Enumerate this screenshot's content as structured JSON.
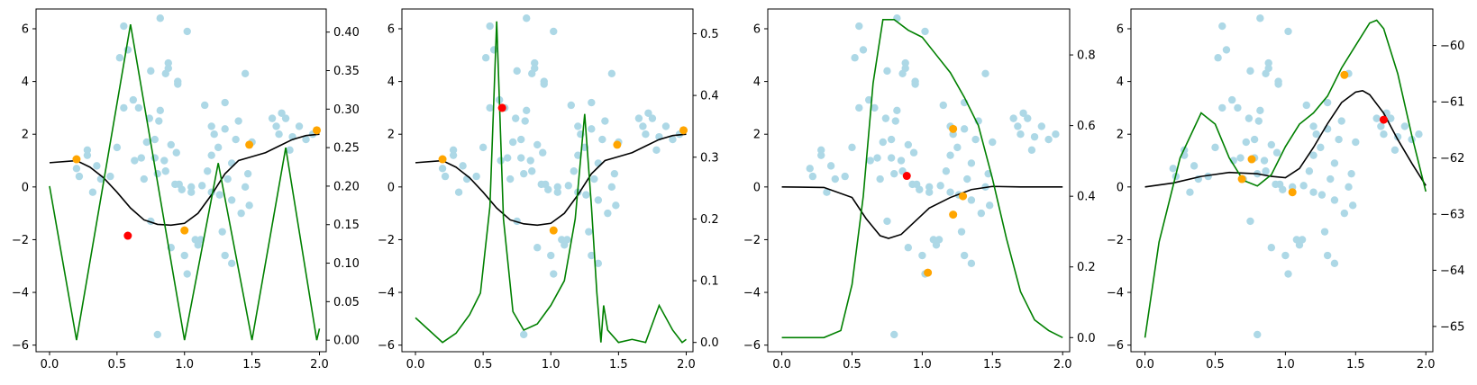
{
  "colors": {
    "scatter": "#add8e6",
    "selected": "#ffa500",
    "best": "#ff0000",
    "mean": "#000000",
    "acquisition": "#008000"
  },
  "chart_data": [
    {
      "type": "scatter",
      "title": "",
      "xlim": [
        -0.1,
        2.05
      ],
      "ylim": [
        -6.25,
        6.75
      ],
      "y2lim": [
        -0.015,
        0.43
      ],
      "x_ticks": [
        {
          "v": 0.0,
          "label": "0.0"
        },
        {
          "v": 0.5,
          "label": "0.5"
        },
        {
          "v": 1.0,
          "label": "1.0"
        },
        {
          "v": 1.5,
          "label": "1.5"
        },
        {
          "v": 2.0,
          "label": "2.0"
        }
      ],
      "y_ticks": [
        {
          "v": -6,
          "label": "−6"
        },
        {
          "v": -4,
          "label": "−4"
        },
        {
          "v": -2,
          "label": "−2"
        },
        {
          "v": 0,
          "label": "0"
        },
        {
          "v": 2,
          "label": "2"
        },
        {
          "v": 4,
          "label": "4"
        },
        {
          "v": 6,
          "label": "6"
        }
      ],
      "y2_ticks": [
        {
          "v": 0.0,
          "label": "0.00"
        },
        {
          "v": 0.05,
          "label": "0.05"
        },
        {
          "v": 0.1,
          "label": "0.10"
        },
        {
          "v": 0.15,
          "label": "0.15"
        },
        {
          "v": 0.2,
          "label": "0.20"
        },
        {
          "v": 0.25,
          "label": "0.25"
        },
        {
          "v": 0.3,
          "label": "0.30"
        },
        {
          "v": 0.35,
          "label": "0.35"
        },
        {
          "v": 0.4,
          "label": "0.40"
        }
      ],
      "selected_points": [
        [
          0.2,
          1.05
        ],
        [
          1.0,
          -1.65
        ],
        [
          1.48,
          1.6
        ],
        [
          1.98,
          2.15
        ]
      ],
      "best_point": [
        0.58,
        -1.85
      ],
      "mean_curve": [
        [
          0,
          0.92
        ],
        [
          0.2,
          1.0
        ],
        [
          0.3,
          0.75
        ],
        [
          0.4,
          0.35
        ],
        [
          0.5,
          -0.2
        ],
        [
          0.6,
          -0.8
        ],
        [
          0.7,
          -1.25
        ],
        [
          0.8,
          -1.42
        ],
        [
          0.9,
          -1.45
        ],
        [
          1.0,
          -1.38
        ],
        [
          1.1,
          -1.0
        ],
        [
          1.2,
          -0.3
        ],
        [
          1.3,
          0.5
        ],
        [
          1.4,
          1.0
        ],
        [
          1.5,
          1.15
        ],
        [
          1.6,
          1.3
        ],
        [
          1.7,
          1.55
        ],
        [
          1.8,
          1.8
        ],
        [
          1.9,
          1.95
        ],
        [
          2.0,
          2.0
        ]
      ],
      "acquisition_curve": [
        [
          0,
          0.2
        ],
        [
          0.2,
          0.0
        ],
        [
          0.6,
          0.41
        ],
        [
          1.0,
          0.0
        ],
        [
          1.25,
          0.23
        ],
        [
          1.5,
          0.0
        ],
        [
          1.75,
          0.25
        ],
        [
          1.98,
          0.0
        ],
        [
          2.0,
          0.015
        ]
      ]
    },
    {
      "type": "scatter",
      "title": "",
      "xlim": [
        -0.1,
        2.05
      ],
      "ylim": [
        -6.25,
        6.75
      ],
      "y2lim": [
        -0.015,
        0.54
      ],
      "x_ticks": [
        {
          "v": 0.0,
          "label": "0.0"
        },
        {
          "v": 0.5,
          "label": "0.5"
        },
        {
          "v": 1.0,
          "label": "1.0"
        },
        {
          "v": 1.5,
          "label": "1.5"
        },
        {
          "v": 2.0,
          "label": "2.0"
        }
      ],
      "y_ticks": [
        {
          "v": -6,
          "label": "−6"
        },
        {
          "v": -4,
          "label": "−4"
        },
        {
          "v": -2,
          "label": "−2"
        },
        {
          "v": 0,
          "label": "0"
        },
        {
          "v": 2,
          "label": "2"
        },
        {
          "v": 4,
          "label": "4"
        },
        {
          "v": 6,
          "label": "6"
        }
      ],
      "y2_ticks": [
        {
          "v": 0.0,
          "label": "0.0"
        },
        {
          "v": 0.1,
          "label": "0.1"
        },
        {
          "v": 0.2,
          "label": "0.2"
        },
        {
          "v": 0.3,
          "label": "0.3"
        },
        {
          "v": 0.4,
          "label": "0.4"
        },
        {
          "v": 0.5,
          "label": "0.5"
        }
      ],
      "selected_points": [
        [
          0.2,
          1.05
        ],
        [
          0.64,
          3.0
        ],
        [
          1.02,
          -1.65
        ],
        [
          1.49,
          1.6
        ],
        [
          1.98,
          2.15
        ]
      ],
      "best_point": [
        0.64,
        3.0
      ],
      "mean_curve": [
        [
          0,
          0.92
        ],
        [
          0.2,
          1.0
        ],
        [
          0.3,
          0.75
        ],
        [
          0.4,
          0.35
        ],
        [
          0.5,
          -0.2
        ],
        [
          0.6,
          -0.8
        ],
        [
          0.7,
          -1.25
        ],
        [
          0.8,
          -1.4
        ],
        [
          0.9,
          -1.45
        ],
        [
          1.0,
          -1.38
        ],
        [
          1.1,
          -1.0
        ],
        [
          1.2,
          -0.3
        ],
        [
          1.3,
          0.5
        ],
        [
          1.4,
          1.0
        ],
        [
          1.5,
          1.15
        ],
        [
          1.6,
          1.3
        ],
        [
          1.7,
          1.55
        ],
        [
          1.8,
          1.8
        ],
        [
          1.9,
          1.95
        ],
        [
          2.0,
          2.0
        ]
      ],
      "acquisition_curve": [
        [
          0,
          0.04
        ],
        [
          0.1,
          0.02
        ],
        [
          0.2,
          0.0
        ],
        [
          0.3,
          0.015
        ],
        [
          0.4,
          0.045
        ],
        [
          0.48,
          0.08
        ],
        [
          0.55,
          0.22
        ],
        [
          0.6,
          0.52
        ],
        [
          0.65,
          0.2
        ],
        [
          0.72,
          0.05
        ],
        [
          0.8,
          0.02
        ],
        [
          0.9,
          0.03
        ],
        [
          1.0,
          0.06
        ],
        [
          1.1,
          0.1
        ],
        [
          1.18,
          0.2
        ],
        [
          1.25,
          0.37
        ],
        [
          1.3,
          0.22
        ],
        [
          1.34,
          0.08
        ],
        [
          1.37,
          0.0
        ],
        [
          1.39,
          0.06
        ],
        [
          1.42,
          0.02
        ],
        [
          1.5,
          0.0
        ],
        [
          1.6,
          0.005
        ],
        [
          1.7,
          0.0
        ],
        [
          1.8,
          0.06
        ],
        [
          1.9,
          0.02
        ],
        [
          1.97,
          0.0
        ],
        [
          2.0,
          0.005
        ]
      ]
    },
    {
      "type": "scatter",
      "title": "",
      "xlim": [
        -0.1,
        2.05
      ],
      "ylim": [
        -6.25,
        6.75
      ],
      "y2lim": [
        -0.04,
        0.93
      ],
      "x_ticks": [
        {
          "v": 0.0,
          "label": "0.0"
        },
        {
          "v": 0.5,
          "label": "0.5"
        },
        {
          "v": 1.0,
          "label": "1.0"
        },
        {
          "v": 1.5,
          "label": "1.5"
        },
        {
          "v": 2.0,
          "label": "2.0"
        }
      ],
      "y_ticks": [
        {
          "v": -6,
          "label": "−6"
        },
        {
          "v": -4,
          "label": "−4"
        },
        {
          "v": -2,
          "label": "−2"
        },
        {
          "v": 0,
          "label": "0"
        },
        {
          "v": 2,
          "label": "2"
        },
        {
          "v": 4,
          "label": "4"
        },
        {
          "v": 6,
          "label": "6"
        }
      ],
      "y2_ticks": [
        {
          "v": 0.0,
          "label": "0.0"
        },
        {
          "v": 0.2,
          "label": "0.2"
        },
        {
          "v": 0.4,
          "label": "0.4"
        },
        {
          "v": 0.6,
          "label": "0.6"
        },
        {
          "v": 0.8,
          "label": "0.8"
        }
      ],
      "selected_points": [
        [
          1.22,
          2.2
        ],
        [
          1.29,
          -0.35
        ],
        [
          1.22,
          -1.05
        ],
        [
          1.04,
          -3.25
        ]
      ],
      "best_point": [
        0.89,
        0.42
      ],
      "mean_curve": [
        [
          0,
          0.0
        ],
        [
          0.3,
          -0.02
        ],
        [
          0.5,
          -0.4
        ],
        [
          0.6,
          -1.2
        ],
        [
          0.7,
          -1.85
        ],
        [
          0.76,
          -1.95
        ],
        [
          0.85,
          -1.8
        ],
        [
          0.95,
          -1.3
        ],
        [
          1.05,
          -0.8
        ],
        [
          1.2,
          -0.4
        ],
        [
          1.35,
          -0.1
        ],
        [
          1.5,
          0.02
        ],
        [
          1.7,
          0.0
        ],
        [
          2.0,
          0.0
        ]
      ],
      "acquisition_curve": [
        [
          0,
          0.0
        ],
        [
          0.3,
          0.0
        ],
        [
          0.42,
          0.02
        ],
        [
          0.5,
          0.15
        ],
        [
          0.58,
          0.4
        ],
        [
          0.65,
          0.72
        ],
        [
          0.72,
          0.9
        ],
        [
          0.8,
          0.9
        ],
        [
          0.9,
          0.87
        ],
        [
          1.0,
          0.85
        ],
        [
          1.1,
          0.8
        ],
        [
          1.2,
          0.75
        ],
        [
          1.3,
          0.68
        ],
        [
          1.4,
          0.6
        ],
        [
          1.5,
          0.45
        ],
        [
          1.6,
          0.28
        ],
        [
          1.7,
          0.13
        ],
        [
          1.8,
          0.05
        ],
        [
          1.9,
          0.02
        ],
        [
          2.0,
          0.0
        ]
      ]
    },
    {
      "type": "scatter",
      "title": "",
      "xlim": [
        -0.1,
        2.05
      ],
      "ylim": [
        -6.25,
        6.75
      ],
      "y2lim": [
        -65.45,
        -59.35
      ],
      "x_ticks": [
        {
          "v": 0.0,
          "label": "0.0"
        },
        {
          "v": 0.5,
          "label": "0.5"
        },
        {
          "v": 1.0,
          "label": "1.0"
        },
        {
          "v": 1.5,
          "label": "1.5"
        },
        {
          "v": 2.0,
          "label": "2.0"
        }
      ],
      "y_ticks": [
        {
          "v": -6,
          "label": "−6"
        },
        {
          "v": -4,
          "label": "−4"
        },
        {
          "v": -2,
          "label": "−2"
        },
        {
          "v": 0,
          "label": "0"
        },
        {
          "v": 2,
          "label": "2"
        },
        {
          "v": 4,
          "label": "4"
        },
        {
          "v": 6,
          "label": "6"
        }
      ],
      "y2_ticks": [
        {
          "v": -65,
          "label": "−65"
        },
        {
          "v": -64,
          "label": "−64"
        },
        {
          "v": -63,
          "label": "−63"
        },
        {
          "v": -62,
          "label": "−62"
        },
        {
          "v": -61,
          "label": "−61"
        },
        {
          "v": -60,
          "label": "−60"
        }
      ],
      "selected_points": [
        [
          0.69,
          0.3
        ],
        [
          0.76,
          1.05
        ],
        [
          1.05,
          -0.2
        ],
        [
          1.42,
          4.25
        ]
      ],
      "best_point": [
        1.7,
        2.55
      ],
      "mean_curve": [
        [
          0,
          0.0
        ],
        [
          0.2,
          0.15
        ],
        [
          0.4,
          0.4
        ],
        [
          0.6,
          0.55
        ],
        [
          0.8,
          0.5
        ],
        [
          0.9,
          0.4
        ],
        [
          1.0,
          0.35
        ],
        [
          1.1,
          0.7
        ],
        [
          1.2,
          1.5
        ],
        [
          1.3,
          2.4
        ],
        [
          1.4,
          3.2
        ],
        [
          1.5,
          3.6
        ],
        [
          1.55,
          3.65
        ],
        [
          1.6,
          3.5
        ],
        [
          1.7,
          2.8
        ],
        [
          1.8,
          1.8
        ],
        [
          1.9,
          0.9
        ],
        [
          2.0,
          0.05
        ]
      ],
      "acquisition_curve": [
        [
          0,
          -65.2
        ],
        [
          0.1,
          -63.5
        ],
        [
          0.25,
          -62.0
        ],
        [
          0.4,
          -61.2
        ],
        [
          0.5,
          -61.4
        ],
        [
          0.6,
          -62.0
        ],
        [
          0.7,
          -62.4
        ],
        [
          0.8,
          -62.5
        ],
        [
          0.9,
          -62.3
        ],
        [
          1.0,
          -61.8
        ],
        [
          1.1,
          -61.4
        ],
        [
          1.2,
          -61.2
        ],
        [
          1.3,
          -60.9
        ],
        [
          1.4,
          -60.4
        ],
        [
          1.5,
          -60.0
        ],
        [
          1.6,
          -59.6
        ],
        [
          1.65,
          -59.55
        ],
        [
          1.7,
          -59.7
        ],
        [
          1.8,
          -60.5
        ],
        [
          1.9,
          -61.6
        ],
        [
          2.0,
          -62.6
        ]
      ]
    }
  ],
  "scatter_points": [
    [
      0.2,
      0.7
    ],
    [
      0.22,
      0.4
    ],
    [
      0.28,
      1.4
    ],
    [
      0.28,
      1.2
    ],
    [
      0.32,
      -0.2
    ],
    [
      0.35,
      0.8
    ],
    [
      0.38,
      0.3
    ],
    [
      0.45,
      0.4
    ],
    [
      0.5,
      1.5
    ],
    [
      0.52,
      4.9
    ],
    [
      0.55,
      6.1
    ],
    [
      0.55,
      3.0
    ],
    [
      0.58,
      5.2
    ],
    [
      0.62,
      3.3
    ],
    [
      0.66,
      3.0
    ],
    [
      0.68,
      1.1
    ],
    [
      0.7,
      0.3
    ],
    [
      0.72,
      1.7
    ],
    [
      0.74,
      2.6
    ],
    [
      0.75,
      -1.3
    ],
    [
      0.75,
      4.4
    ],
    [
      0.78,
      1.8
    ],
    [
      0.78,
      1.1
    ],
    [
      0.8,
      0.5
    ],
    [
      0.81,
      2.5
    ],
    [
      0.8,
      -5.6
    ],
    [
      0.82,
      6.4
    ],
    [
      0.82,
      2.9
    ],
    [
      0.85,
      1.0
    ],
    [
      0.86,
      0.6
    ],
    [
      0.88,
      4.7
    ],
    [
      0.88,
      4.5
    ],
    [
      0.9,
      1.6
    ],
    [
      0.9,
      -2.3
    ],
    [
      0.93,
      0.1
    ],
    [
      0.95,
      4.0
    ],
    [
      0.95,
      3.9
    ],
    [
      0.96,
      0.1
    ],
    [
      0.98,
      -0.1
    ],
    [
      1.0,
      -2.6
    ],
    [
      1.02,
      5.9
    ],
    [
      1.02,
      -3.3
    ],
    [
      1.05,
      -0.2
    ],
    [
      1.05,
      0.0
    ],
    [
      1.1,
      -2.2
    ],
    [
      1.12,
      -2.0
    ],
    [
      1.15,
      3.1
    ],
    [
      1.17,
      0.6
    ],
    [
      1.2,
      2.3
    ],
    [
      1.2,
      1.2
    ],
    [
      1.22,
      2.0
    ],
    [
      1.25,
      1.5
    ],
    [
      1.26,
      -0.3
    ],
    [
      1.28,
      -1.7
    ],
    [
      1.3,
      3.2
    ],
    [
      1.3,
      2.2
    ],
    [
      1.32,
      0.3
    ],
    [
      1.35,
      -0.5
    ],
    [
      1.35,
      -2.9
    ],
    [
      1.38,
      1.8
    ],
    [
      1.4,
      2.5
    ],
    [
      1.42,
      -1.0
    ],
    [
      1.45,
      0.0
    ],
    [
      1.45,
      4.3
    ],
    [
      1.47,
      0.5
    ],
    [
      1.48,
      -0.7
    ],
    [
      1.5,
      1.7
    ],
    [
      1.65,
      2.6
    ],
    [
      1.68,
      2.3
    ],
    [
      1.7,
      2.0
    ],
    [
      1.72,
      2.8
    ],
    [
      1.75,
      2.6
    ],
    [
      1.78,
      1.4
    ],
    [
      1.8,
      1.9
    ],
    [
      1.85,
      2.3
    ],
    [
      1.9,
      1.8
    ],
    [
      1.95,
      2.0
    ],
    [
      1.13,
      0.05
    ],
    [
      1.08,
      -2.0
    ],
    [
      0.63,
      1.0
    ],
    [
      1.2,
      -0.2
    ],
    [
      1.3,
      -2.6
    ],
    [
      0.94,
      1.3
    ],
    [
      1.35,
      0.9
    ],
    [
      0.86,
      4.3
    ]
  ]
}
